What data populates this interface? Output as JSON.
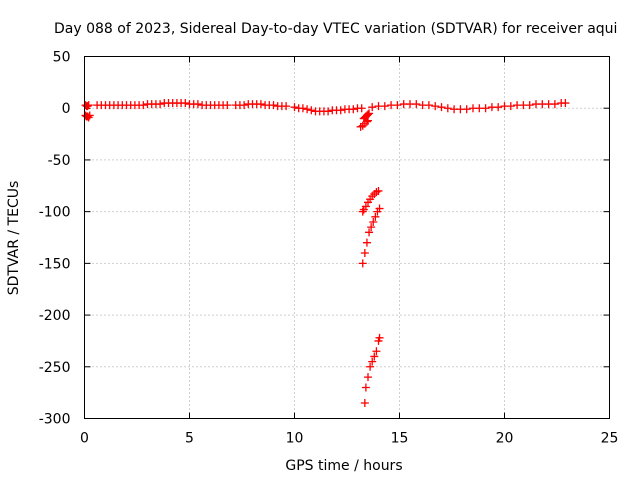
{
  "chart_data": {
    "type": "scatter",
    "title": "Day 088 of 2023, Sidereal Day-to-day VTEC variation (SDTVAR) for receiver aqui",
    "xlabel": "GPS time / hours",
    "ylabel": "SDTVAR / TECUs",
    "xlim": [
      0,
      25
    ],
    "ylim": [
      -300,
      50
    ],
    "x_ticks": [
      0,
      5,
      10,
      15,
      20,
      25
    ],
    "y_ticks": [
      50,
      0,
      -50,
      -100,
      -150,
      -200,
      -250,
      -300
    ],
    "grid": true,
    "marker": "plus",
    "color": "#ff0000",
    "series": [
      {
        "x": [
          0.05,
          0.1,
          0.15,
          0.2,
          0.05,
          0.1,
          0.15,
          0.2,
          0.25,
          0.6,
          0.8,
          1.0,
          1.2,
          1.4,
          1.6,
          1.8,
          2.0,
          2.2,
          2.4,
          2.6,
          2.8,
          3.0,
          3.2,
          3.4,
          3.6,
          3.8,
          4.0,
          4.2,
          4.4,
          4.6,
          4.8,
          5.0,
          5.2,
          5.4,
          5.6,
          5.8,
          6.0,
          6.2,
          6.4,
          6.6,
          6.8,
          7.2,
          7.4,
          7.6,
          7.8,
          8.0,
          8.2,
          8.4,
          8.6,
          8.8,
          9.0,
          9.2,
          9.4,
          9.6,
          10.0,
          10.2,
          10.4,
          10.6,
          10.8,
          11.0,
          11.2,
          11.4,
          11.6,
          11.8,
          12.0,
          12.2,
          12.4,
          12.6,
          12.8,
          13.0,
          13.2,
          13.15,
          13.25,
          13.35,
          13.45,
          13.5,
          13.3,
          13.35,
          13.4,
          13.45,
          13.5,
          13.55,
          13.25,
          13.3,
          13.4,
          13.5,
          13.6,
          13.7,
          13.8,
          13.9,
          14.0,
          13.25,
          13.35,
          13.45,
          13.55,
          13.65,
          13.75,
          13.85,
          13.95,
          14.05,
          13.35,
          13.4,
          13.5,
          13.6,
          13.7,
          13.8,
          13.9,
          14.0,
          14.05,
          13.7,
          14.0,
          14.3,
          14.6,
          14.9,
          15.2,
          15.5,
          15.8,
          16.1,
          16.4,
          16.7,
          17.0,
          17.3,
          17.6,
          17.9,
          18.2,
          18.5,
          18.8,
          19.1,
          19.4,
          19.7,
          20.0,
          20.3,
          20.6,
          20.9,
          21.2,
          21.5,
          21.8,
          22.1,
          22.4,
          22.7,
          22.9
        ],
        "y": [
          3,
          2,
          2,
          3,
          -7,
          -8,
          -8,
          -9,
          -7,
          3,
          3,
          3,
          3,
          3,
          3,
          3,
          3,
          3,
          3,
          3,
          3,
          4,
          4,
          4,
          4,
          5,
          5,
          5,
          5,
          5,
          5,
          4,
          4,
          4,
          3,
          3,
          3,
          3,
          3,
          3,
          3,
          3,
          3,
          3,
          4,
          4,
          4,
          4,
          3,
          3,
          3,
          2,
          2,
          2,
          1,
          0,
          0,
          -1,
          -2,
          -3,
          -3,
          -3,
          -3,
          -2,
          -2,
          -2,
          -1,
          -1,
          -1,
          0,
          0,
          -18,
          -17,
          -15,
          -13,
          -12,
          -10,
          -9,
          -8,
          -7,
          -6,
          -5,
          -100,
          -98,
          -95,
          -91,
          -88,
          -85,
          -83,
          -81,
          -80,
          -150,
          -140,
          -130,
          -120,
          -115,
          -110,
          -105,
          -100,
          -97,
          -285,
          -270,
          -260,
          -250,
          -245,
          -240,
          -235,
          -225,
          -222,
          1,
          2,
          2,
          3,
          3,
          4,
          4,
          4,
          3,
          3,
          2,
          1,
          0,
          -1,
          -1,
          -1,
          0,
          0,
          0,
          1,
          1,
          2,
          2,
          3,
          3,
          3,
          4,
          4,
          4,
          4,
          5,
          5
        ]
      }
    ]
  }
}
